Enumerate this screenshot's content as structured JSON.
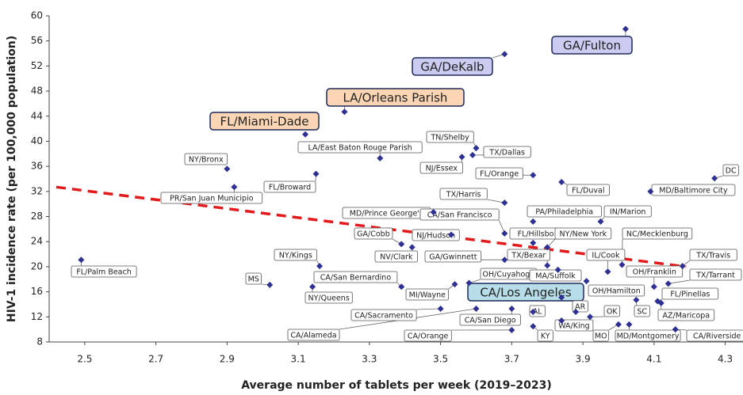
{
  "chart_data": {
    "type": "scatter",
    "x_label": "Average number of tablets per week (2019–2023)",
    "y_label": "HIV-1 incidence rate (per 100,000 population)",
    "xlim": [
      2.4,
      4.35
    ],
    "ylim": [
      8,
      60
    ],
    "xticks": [
      2.5,
      2.7,
      2.9,
      3.1,
      3.3,
      3.5,
      3.7,
      3.9,
      4.1,
      4.3
    ],
    "yticks": [
      8,
      12,
      16,
      20,
      24,
      28,
      32,
      36,
      40,
      44,
      48,
      52,
      56,
      60
    ],
    "color": "#2e3192",
    "trendline": {
      "color": "#e31a1c",
      "x": [
        2.42,
        4.19
      ],
      "y": [
        32.7,
        20.0
      ]
    },
    "points": [
      {
        "label": "FL/Palm Beach",
        "x": 2.49,
        "y": 21.1
      },
      {
        "label": "NY/Bronx",
        "x": 2.9,
        "y": 35.6
      },
      {
        "label": "PR/San Juan Municipio",
        "x": 2.92,
        "y": 32.7
      },
      {
        "label": "FL/Miami-Dade",
        "x": 3.12,
        "y": 41.1,
        "highlight": "#fcd5b4"
      },
      {
        "label": "LA/East Baton Rouge Parish",
        "x": 3.33,
        "y": 37.3
      },
      {
        "label": "FL/Broward",
        "x": 3.15,
        "y": 34.8
      },
      {
        "label": "LA/Orleans Parish",
        "x": 3.23,
        "y": 44.7,
        "highlight": "#fcd5b4"
      },
      {
        "label": "GA/DeKalb",
        "x": 3.68,
        "y": 53.9,
        "highlight": "#ccccf2"
      },
      {
        "label": "GA/Fulton",
        "x": 4.02,
        "y": 57.9,
        "highlight": "#ccccf2"
      },
      {
        "label": "TN/Shelby",
        "x": 3.6,
        "y": 38.9
      },
      {
        "label": "TX/Dallas",
        "x": 3.59,
        "y": 37.8
      },
      {
        "label": "NJ/Essex",
        "x": 3.56,
        "y": 37.5
      },
      {
        "label": "FL/Orange",
        "x": 3.76,
        "y": 34.6
      },
      {
        "label": "FL/Duval",
        "x": 3.84,
        "y": 33.5
      },
      {
        "label": "DC",
        "x": 4.27,
        "y": 34.1
      },
      {
        "label": "MD/Baltimore City",
        "x": 4.09,
        "y": 32.0
      },
      {
        "label": "TX/Harris",
        "x": 3.68,
        "y": 30.2
      },
      {
        "label": "MD/Prince George's",
        "x": 3.48,
        "y": 28.7
      },
      {
        "label": "CA/San Francisco",
        "x": 3.68,
        "y": 25.3
      },
      {
        "label": "PA/Philadelphia",
        "x": 3.76,
        "y": 27.2
      },
      {
        "label": "IN/Marion",
        "x": 3.95,
        "y": 27.2
      },
      {
        "label": "GA/Cobb",
        "x": 3.39,
        "y": 23.6
      },
      {
        "label": "NJ/Hudson",
        "x": 3.53,
        "y": 25.1
      },
      {
        "label": "NV/Clark",
        "x": 3.42,
        "y": 23.1
      },
      {
        "label": "FL/Hillsbo",
        "x": 3.76,
        "y": 23.8
      },
      {
        "label": "NY/New York",
        "x": 3.8,
        "y": 23.1
      },
      {
        "label": "NC/Mecklenburg",
        "x": 4.01,
        "y": 20.3
      },
      {
        "label": "GA/Gwinnett",
        "x": 3.68,
        "y": 21.1
      },
      {
        "label": "TX/Bexar",
        "x": 3.8,
        "y": 20.2
      },
      {
        "label": "IL/Cook",
        "x": 3.97,
        "y": 19.2
      },
      {
        "label": "NY/Kings",
        "x": 3.16,
        "y": 20.1
      },
      {
        "label": "MS",
        "x": 3.02,
        "y": 17.1
      },
      {
        "label": "CA/San Bernardino",
        "x": 3.39,
        "y": 16.8
      },
      {
        "label": "NY/Queens",
        "x": 3.14,
        "y": 16.8
      },
      {
        "label": "OH/Cuyahoga",
        "x": 3.58,
        "y": 17.4
      },
      {
        "label": "MI/Wayne",
        "x": 3.54,
        "y": 17.2
      },
      {
        "label": "MA/Suffolk",
        "x": 3.83,
        "y": 19.5
      },
      {
        "label": "OH/Hamilton",
        "x": 3.91,
        "y": 17.7
      },
      {
        "label": "OH/Franklin",
        "x": 4.1,
        "y": 16.8
      },
      {
        "label": "TX/Travis",
        "x": 4.18,
        "y": 20.1
      },
      {
        "label": "TX/Tarrant",
        "x": 4.14,
        "y": 17.3
      },
      {
        "label": "FL/Pinellas",
        "x": 4.11,
        "y": 14.5
      },
      {
        "label": "AZ/Maricopa",
        "x": 4.12,
        "y": 14.2
      },
      {
        "label": "SC",
        "x": 4.05,
        "y": 14.7
      },
      {
        "label": "CA/Los Angeles",
        "x": 3.84,
        "y": 15.1,
        "highlight": "#b7dde8"
      },
      {
        "label": "AR",
        "x": 3.88,
        "y": 12.8
      },
      {
        "label": "AL",
        "x": 3.76,
        "y": 12.8
      },
      {
        "label": "OK",
        "x": 3.92,
        "y": 12.0
      },
      {
        "label": "CA/Sacramento",
        "x": 3.5,
        "y": 13.3
      },
      {
        "label": "CA/San Diego",
        "x": 3.7,
        "y": 13.3
      },
      {
        "label": "CA/Alameda",
        "x": 3.6,
        "y": 13.3
      },
      {
        "label": "WA/King",
        "x": 3.84,
        "y": 11.4
      },
      {
        "label": "KY",
        "x": 3.76,
        "y": 10.5
      },
      {
        "label": "MO",
        "x": 4.0,
        "y": 10.8
      },
      {
        "label": "MD/Montgomery",
        "x": 4.03,
        "y": 10.8
      },
      {
        "label": "CA/Riverside",
        "x": 4.16,
        "y": 10.0
      },
      {
        "label": "CA/Orange",
        "x": 3.7,
        "y": 9.9
      }
    ]
  }
}
